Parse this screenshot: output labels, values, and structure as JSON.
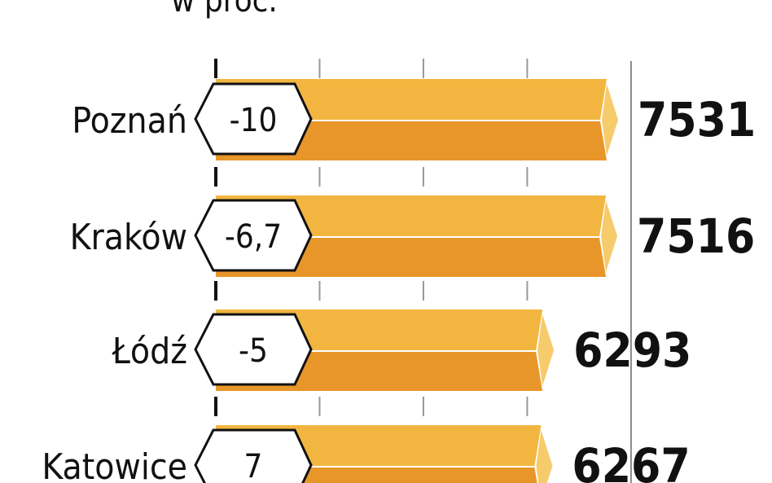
{
  "chart_data": {
    "type": "bar",
    "orientation": "horizontal",
    "subtitle": "w proc.",
    "categories": [
      "Poznań",
      "Kraków",
      "Łódź",
      "Katowice"
    ],
    "values": [
      7531,
      7516,
      6293,
      6267
    ],
    "value_labels": [
      "7531",
      "7516",
      "6293",
      "6267"
    ],
    "change_labels": [
      "-10",
      "-6,7",
      "-5",
      "7"
    ],
    "xlim": [
      0,
      8000
    ],
    "grid": true,
    "colors": {
      "bar_top": "#F2B640",
      "bar_bottom": "#E8962A",
      "bar_tip": "#F6CB6C",
      "text": "#111111"
    }
  }
}
